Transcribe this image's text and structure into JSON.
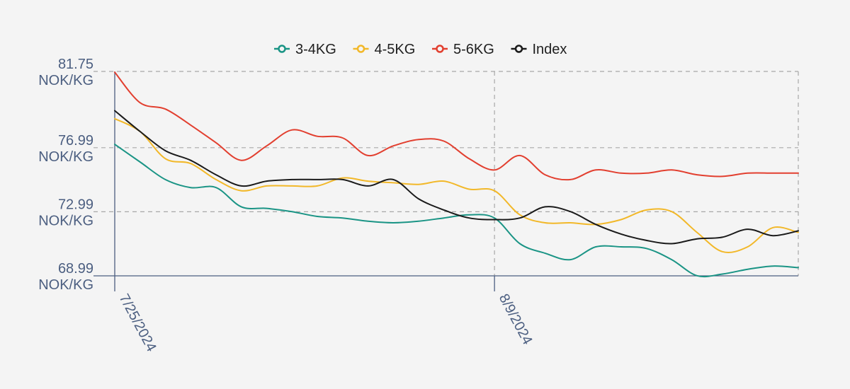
{
  "chart_data": {
    "type": "line",
    "title": "",
    "xlabel": "",
    "ylabel": "",
    "unit": "NOK/KG",
    "ylim": [
      68.99,
      81.75
    ],
    "yticks": [
      81.75,
      76.99,
      72.99,
      68.99
    ],
    "xticks": [
      "7/25/2024",
      "8/9/2024"
    ],
    "grid": true,
    "legend_position": "top",
    "x": [
      "7/25/2024",
      "7/26/2024",
      "7/27/2024",
      "7/28/2024",
      "7/29/2024",
      "7/30/2024",
      "7/31/2024",
      "8/1/2024",
      "8/2/2024",
      "8/3/2024",
      "8/4/2024",
      "8/5/2024",
      "8/6/2024",
      "8/7/2024",
      "8/8/2024",
      "8/9/2024",
      "8/10/2024",
      "8/11/2024",
      "8/12/2024",
      "8/13/2024",
      "8/14/2024",
      "8/15/2024",
      "8/16/2024",
      "8/17/2024",
      "8/18/2024",
      "8/19/2024",
      "8/20/2024",
      "8/21/2024"
    ],
    "series": [
      {
        "name": "3-4KG",
        "color": "#1a9485",
        "values": [
          77.2,
          76.1,
          75.0,
          74.5,
          74.5,
          73.3,
          73.2,
          73.0,
          72.7,
          72.6,
          72.4,
          72.3,
          72.4,
          72.6,
          72.8,
          72.6,
          71.0,
          70.4,
          70.0,
          70.8,
          70.8,
          70.7,
          70.0,
          69.0,
          69.1,
          69.4,
          69.6,
          69.5
        ]
      },
      {
        "name": "4-5KG",
        "color": "#f2b829",
        "values": [
          78.8,
          78.0,
          76.3,
          76.0,
          75.0,
          74.3,
          74.6,
          74.6,
          74.6,
          75.1,
          74.9,
          74.8,
          74.7,
          74.9,
          74.4,
          74.3,
          72.8,
          72.3,
          72.3,
          72.2,
          72.5,
          73.1,
          73.0,
          71.7,
          70.5,
          70.8,
          72.0,
          71.7
        ]
      },
      {
        "name": "5-6KG",
        "color": "#e23f2f",
        "values": [
          81.7,
          79.8,
          79.4,
          78.4,
          77.3,
          76.2,
          77.1,
          78.1,
          77.7,
          77.6,
          76.5,
          77.1,
          77.5,
          77.4,
          76.3,
          75.6,
          76.5,
          75.3,
          75.0,
          75.6,
          75.4,
          75.4,
          75.6,
          75.3,
          75.2,
          75.4,
          75.4,
          75.4
        ]
      },
      {
        "name": "Index",
        "color": "#1a1a1a",
        "values": [
          79.3,
          78.0,
          76.8,
          76.2,
          75.3,
          74.6,
          74.9,
          75.0,
          75.0,
          75.0,
          74.6,
          75.0,
          73.8,
          73.1,
          72.6,
          72.5,
          72.6,
          73.3,
          73.0,
          72.2,
          71.6,
          71.2,
          71.0,
          71.3,
          71.4,
          71.9,
          71.5,
          71.8
        ]
      }
    ]
  }
}
